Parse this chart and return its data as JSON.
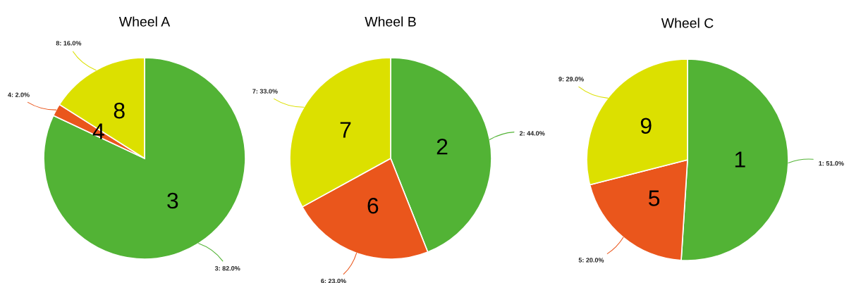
{
  "chart_data": [
    {
      "type": "pie",
      "title": "Wheel A",
      "categories": [
        "3",
        "4",
        "8"
      ],
      "values": [
        82,
        2,
        16
      ],
      "colors": [
        "#52b335",
        "#ea561c",
        "#dce000"
      ],
      "value_labels": [
        "3: 82.0%",
        "4: 2.0%",
        "8: 16.0%"
      ]
    },
    {
      "type": "pie",
      "title": "Wheel B",
      "categories": [
        "2",
        "6",
        "7"
      ],
      "values": [
        44,
        23,
        33
      ],
      "colors": [
        "#52b335",
        "#ea561c",
        "#dce000"
      ],
      "value_labels": [
        "2: 44.0%",
        "6: 23.0%",
        "7: 33.0%"
      ]
    },
    {
      "type": "pie",
      "title": "Wheel C",
      "categories": [
        "1",
        "5",
        "9"
      ],
      "values": [
        51,
        20,
        29
      ],
      "colors": [
        "#52b335",
        "#ea561c",
        "#dce000"
      ],
      "value_labels": [
        "1: 51.0%",
        "5: 20.0%",
        "9: 29.0%"
      ]
    }
  ]
}
